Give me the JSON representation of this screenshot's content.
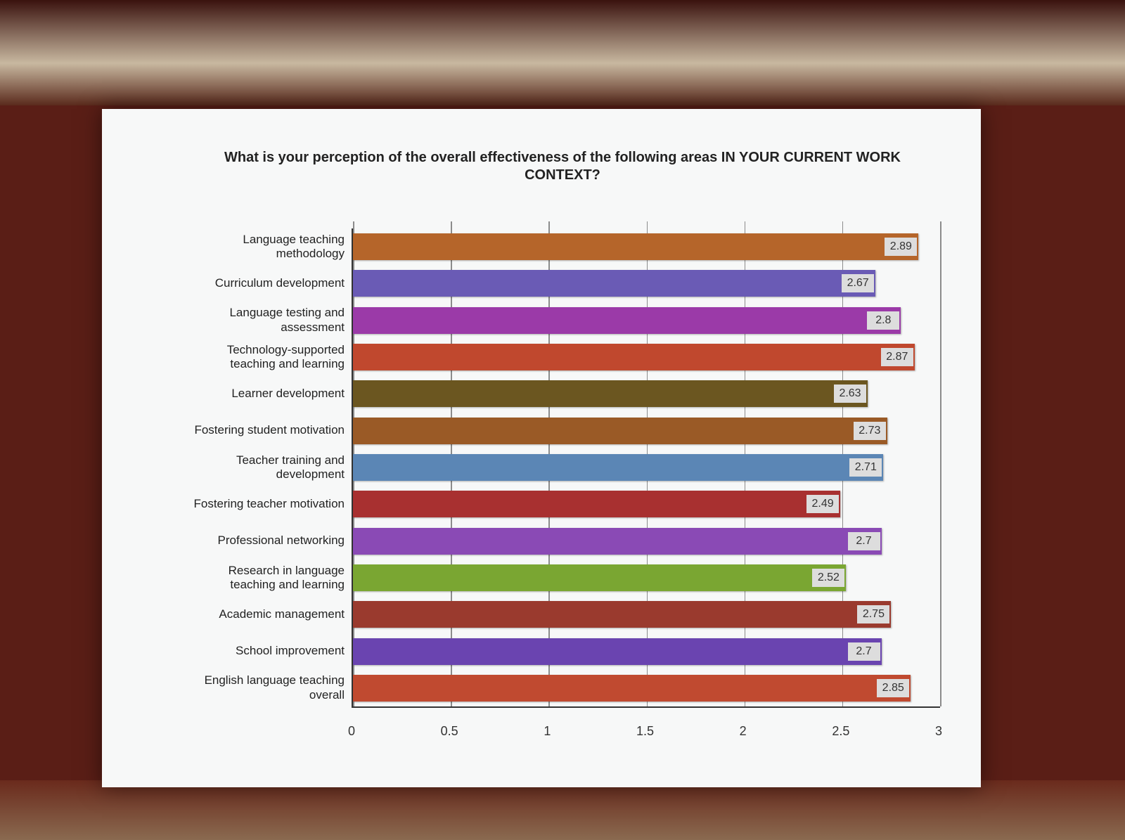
{
  "chart_data": {
    "type": "bar",
    "orientation": "horizontal",
    "title": "What is your perception of the overall effectiveness of the following areas IN YOUR CURRENT WORK CONTEXT?",
    "categories": [
      "Language teaching methodology",
      "Curriculum development",
      "Language testing and assessment",
      "Technology-supported teaching and learning",
      "Learner development",
      "Fostering student motivation",
      "Teacher training and development",
      "Fostering teacher motivation",
      "Professional networking",
      "Research in language teaching and learning",
      "Academic management",
      "School improvement",
      "English language teaching overall"
    ],
    "values": [
      2.89,
      2.67,
      2.8,
      2.87,
      2.63,
      2.73,
      2.71,
      2.49,
      2.7,
      2.52,
      2.75,
      2.7,
      2.85
    ],
    "colors": [
      "#b5652a",
      "#6a5bb5",
      "#9b3aa8",
      "#c0482e",
      "#6b5620",
      "#9a5a26",
      "#5b86b5",
      "#a83030",
      "#8a4ab5",
      "#7aa632",
      "#9a3a2e",
      "#6a44b0",
      "#c04a30"
    ],
    "xlim": [
      0,
      3
    ],
    "xticks": [
      0,
      0.5,
      1,
      1.5,
      2,
      2.5,
      3
    ],
    "grid": true
  }
}
